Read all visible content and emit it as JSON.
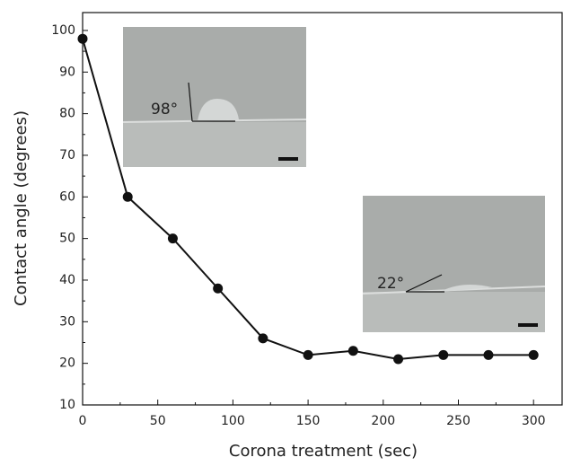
{
  "chart_data": {
    "type": "line",
    "x_label": "Corona treatment (sec)",
    "y_label": "Contact angle (degrees)",
    "x": [
      0,
      30,
      60,
      90,
      120,
      150,
      180,
      210,
      240,
      270,
      300
    ],
    "series": [
      {
        "color": "#111111",
        "values": [
          98,
          60,
          50,
          38,
          26,
          22,
          23,
          21,
          22,
          22,
          22
        ]
      }
    ],
    "xlim": [
      0,
      319
    ],
    "ylim": [
      10,
      104.3
    ],
    "xticks": [
      0,
      50,
      100,
      150,
      200,
      250,
      300
    ],
    "yticks": [
      10,
      20,
      30,
      40,
      50,
      60,
      70,
      80,
      90,
      100
    ],
    "annotations": [
      "98°",
      "22°"
    ]
  }
}
